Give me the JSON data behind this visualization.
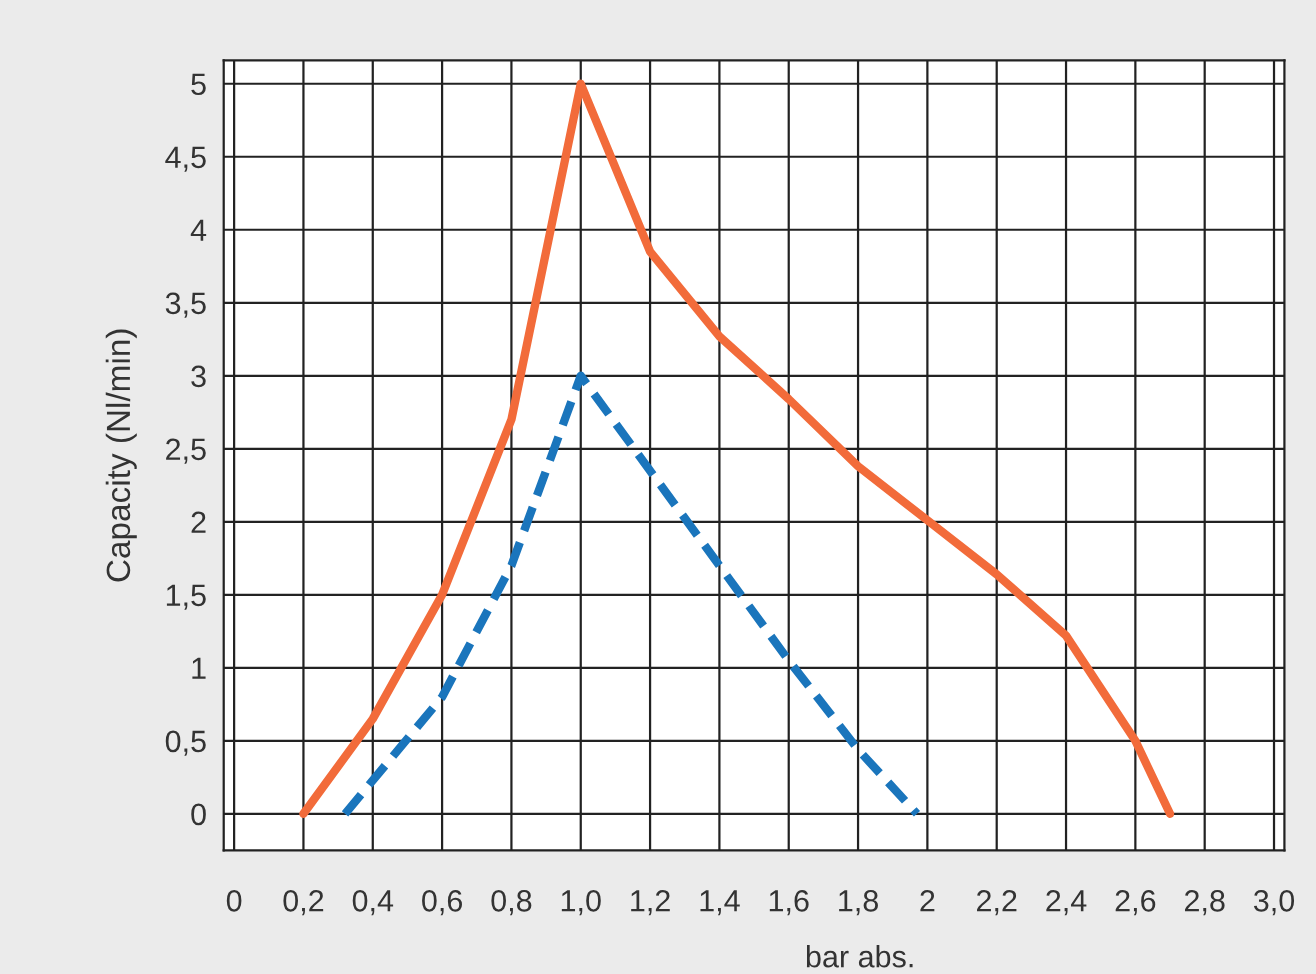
{
  "chart_data": {
    "type": "line",
    "xlabel": "bar abs.",
    "ylabel": "Capacity (Nl/min)",
    "xlim": [
      -0.03,
      3.03
    ],
    "ylim": [
      -0.25,
      5.16
    ],
    "xticks": [
      0,
      {
        "value": 0.2,
        "label": "0,2"
      },
      {
        "value": 0.4,
        "label": "0,4"
      },
      {
        "value": 0.6,
        "label": "0,6"
      },
      {
        "value": 0.8,
        "label": "0,8"
      },
      {
        "value": 1.0,
        "label": "1,0"
      },
      {
        "value": 1.2,
        "label": "1,2"
      },
      {
        "value": 1.4,
        "label": "1,4"
      },
      {
        "value": 1.6,
        "label": "1,6"
      },
      {
        "value": 1.8,
        "label": "1,8"
      },
      2,
      {
        "value": 2.2,
        "label": "2,2"
      },
      {
        "value": 2.4,
        "label": "2,4"
      },
      {
        "value": 2.6,
        "label": "2,6"
      },
      {
        "value": 2.8,
        "label": "2,8"
      },
      {
        "value": 3.0,
        "label": "3,0"
      }
    ],
    "yticks": [
      0,
      {
        "value": 0.5,
        "label": "0,5"
      },
      1,
      {
        "value": 1.5,
        "label": "1,5"
      },
      2,
      {
        "value": 2.5,
        "label": "2,5"
      },
      3,
      {
        "value": 3.5,
        "label": "3,5"
      },
      4,
      {
        "value": 4.5,
        "label": "4,5"
      },
      5
    ],
    "grid": true,
    "marker": "none",
    "series": [
      {
        "color": "#f26b3a",
        "line_style": "solid",
        "x": [
          0.2,
          0.4,
          0.6,
          0.8,
          1.0,
          1.2,
          1.4,
          1.6,
          1.8,
          2.0,
          2.2,
          2.4,
          2.6,
          2.7
        ],
        "values": [
          0,
          0.65,
          1.5,
          2.7,
          5.0,
          3.85,
          3.27,
          2.84,
          2.38,
          2.01,
          1.64,
          1.22,
          0.5,
          0
        ]
      },
      {
        "color": "#1a75bc",
        "line_style": "dashed",
        "x": [
          0.32,
          0.6,
          0.8,
          1.0,
          1.2,
          1.4,
          1.6,
          1.8,
          1.97
        ],
        "values": [
          0,
          0.8,
          1.7,
          3.0,
          2.35,
          1.7,
          1.05,
          0.44,
          0
        ]
      }
    ]
  }
}
